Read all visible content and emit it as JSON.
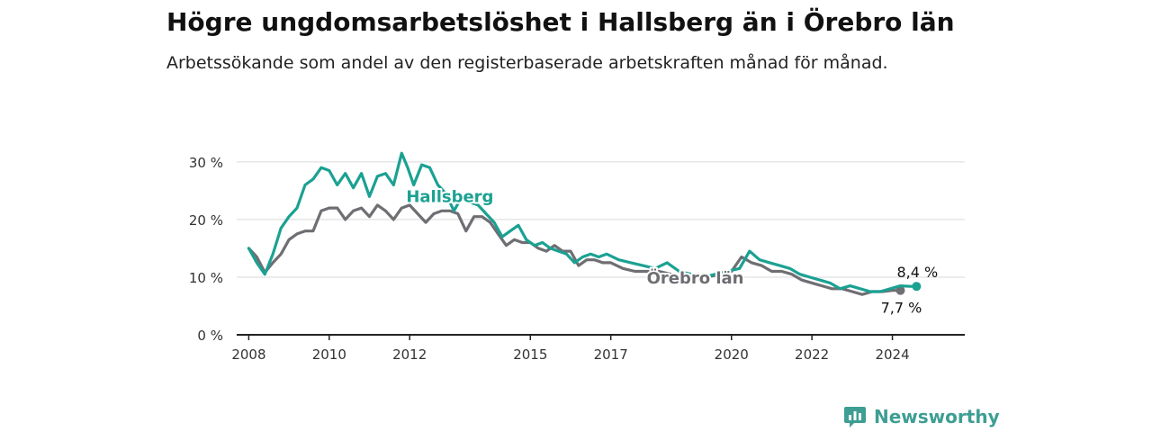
{
  "title": "Högre ungdomsarbetslöshet i Hallsberg än i Örebro län",
  "subtitle": "Arbetssökande som andel av den registerbaserade arbetskraften månad för månad.",
  "brand": {
    "name": "Newsworthy",
    "icon": "newsworthy-logo-icon",
    "color": "#3e9e93"
  },
  "chart_data": {
    "type": "line",
    "x_unit": "year (decimal)",
    "xlim": [
      2007.7,
      2025.8
    ],
    "ylim": [
      0,
      30
    ],
    "yticks": [
      {
        "value": 0,
        "label": "0 %"
      },
      {
        "value": 10,
        "label": "10 %"
      },
      {
        "value": 20,
        "label": "20 %"
      },
      {
        "value": 30,
        "label": "30 %"
      }
    ],
    "xticks": [
      {
        "value": 2008,
        "label": "2008"
      },
      {
        "value": 2010,
        "label": "2010"
      },
      {
        "value": 2012,
        "label": "2012"
      },
      {
        "value": 2015,
        "label": "2015"
      },
      {
        "value": 2017,
        "label": "2017"
      },
      {
        "value": 2020,
        "label": "2020"
      },
      {
        "value": 2022,
        "label": "2022"
      },
      {
        "value": 2024,
        "label": "2024"
      }
    ],
    "grid": true,
    "legend": "inline labels",
    "series": [
      {
        "name": "Örebro län",
        "color": "#6e6e73",
        "label_x": 2019.1,
        "label_y": 8.9,
        "end_label": "7,7 %",
        "x": [
          2008.0,
          2008.2,
          2008.4,
          2008.6,
          2008.8,
          2009.0,
          2009.2,
          2009.4,
          2009.6,
          2009.8,
          2010.0,
          2010.2,
          2010.4,
          2010.6,
          2010.8,
          2011.0,
          2011.2,
          2011.4,
          2011.6,
          2011.8,
          2012.0,
          2012.2,
          2012.4,
          2012.6,
          2012.8,
          2013.0,
          2013.2,
          2013.4,
          2013.6,
          2013.8,
          2014.0,
          2014.2,
          2014.4,
          2014.6,
          2014.8,
          2015.0,
          2015.2,
          2015.4,
          2015.6,
          2015.8,
          2016.0,
          2016.2,
          2016.4,
          2016.6,
          2016.8,
          2017.0,
          2017.3,
          2017.6,
          2017.9,
          2018.2,
          2018.5,
          2018.8,
          2019.1,
          2019.4,
          2019.7,
          2020.0,
          2020.25,
          2020.5,
          2020.75,
          2021.0,
          2021.25,
          2021.5,
          2021.75,
          2022.0,
          2022.25,
          2022.5,
          2022.75,
          2023.0,
          2023.25,
          2023.5,
          2023.75,
          2024.0,
          2024.2
        ],
        "y": [
          15.0,
          13.5,
          10.8,
          12.5,
          14.0,
          16.5,
          17.5,
          18.0,
          18.0,
          21.5,
          22.0,
          22.0,
          20.0,
          21.5,
          22.0,
          20.5,
          22.5,
          21.5,
          20.0,
          22.0,
          22.5,
          21.0,
          19.5,
          21.0,
          21.5,
          21.5,
          21.0,
          18.0,
          20.5,
          20.5,
          19.5,
          17.5,
          15.5,
          16.5,
          16.0,
          16.0,
          15.0,
          14.5,
          15.5,
          14.5,
          14.5,
          12.0,
          13.0,
          13.0,
          12.5,
          12.5,
          11.5,
          11.0,
          11.0,
          11.0,
          10.5,
          10.0,
          10.0,
          10.0,
          10.5,
          11.0,
          13.5,
          12.5,
          12.0,
          11.0,
          11.0,
          10.5,
          9.5,
          9.0,
          8.5,
          8.0,
          8.0,
          7.5,
          7.0,
          7.5,
          7.5,
          7.7,
          7.7
        ]
      },
      {
        "name": "Hallsberg",
        "color": "#1ba192",
        "label_x": 2013.0,
        "label_y": 23.0,
        "end_label": "8,4 %",
        "x": [
          2008.0,
          2008.2,
          2008.4,
          2008.6,
          2008.8,
          2009.0,
          2009.2,
          2009.4,
          2009.6,
          2009.8,
          2010.0,
          2010.2,
          2010.4,
          2010.6,
          2010.8,
          2011.0,
          2011.2,
          2011.4,
          2011.6,
          2011.8,
          2011.95,
          2012.1,
          2012.3,
          2012.5,
          2012.7,
          2012.9,
          2013.1,
          2013.3,
          2013.5,
          2013.7,
          2013.9,
          2014.1,
          2014.3,
          2014.5,
          2014.7,
          2014.9,
          2015.1,
          2015.3,
          2015.5,
          2015.7,
          2015.9,
          2016.1,
          2016.3,
          2016.5,
          2016.7,
          2016.9,
          2017.2,
          2017.5,
          2017.8,
          2018.1,
          2018.4,
          2018.7,
          2019.0,
          2019.3,
          2019.6,
          2019.9,
          2020.2,
          2020.45,
          2020.7,
          2020.95,
          2021.2,
          2021.45,
          2021.7,
          2021.95,
          2022.2,
          2022.45,
          2022.7,
          2022.95,
          2023.2,
          2023.45,
          2023.7,
          2023.95,
          2024.2,
          2024.45,
          2024.6
        ],
        "y": [
          15.0,
          12.5,
          10.5,
          14.0,
          18.5,
          20.5,
          22.0,
          26.0,
          27.0,
          29.0,
          28.5,
          26.0,
          28.0,
          25.5,
          28.0,
          24.0,
          27.5,
          28.0,
          26.0,
          31.5,
          29.0,
          26.0,
          29.5,
          29.0,
          26.0,
          24.5,
          21.5,
          24.0,
          23.0,
          22.5,
          21.0,
          19.5,
          17.0,
          18.0,
          19.0,
          16.5,
          15.5,
          16.0,
          15.0,
          14.5,
          14.0,
          12.5,
          13.5,
          14.0,
          13.5,
          14.0,
          13.0,
          12.5,
          12.0,
          11.5,
          12.5,
          11.0,
          10.5,
          10.0,
          10.5,
          11.0,
          11.5,
          14.5,
          13.0,
          12.5,
          12.0,
          11.5,
          10.5,
          10.0,
          9.5,
          9.0,
          8.0,
          8.5,
          8.0,
          7.5,
          7.5,
          8.0,
          8.5,
          8.4,
          8.4
        ]
      }
    ]
  }
}
